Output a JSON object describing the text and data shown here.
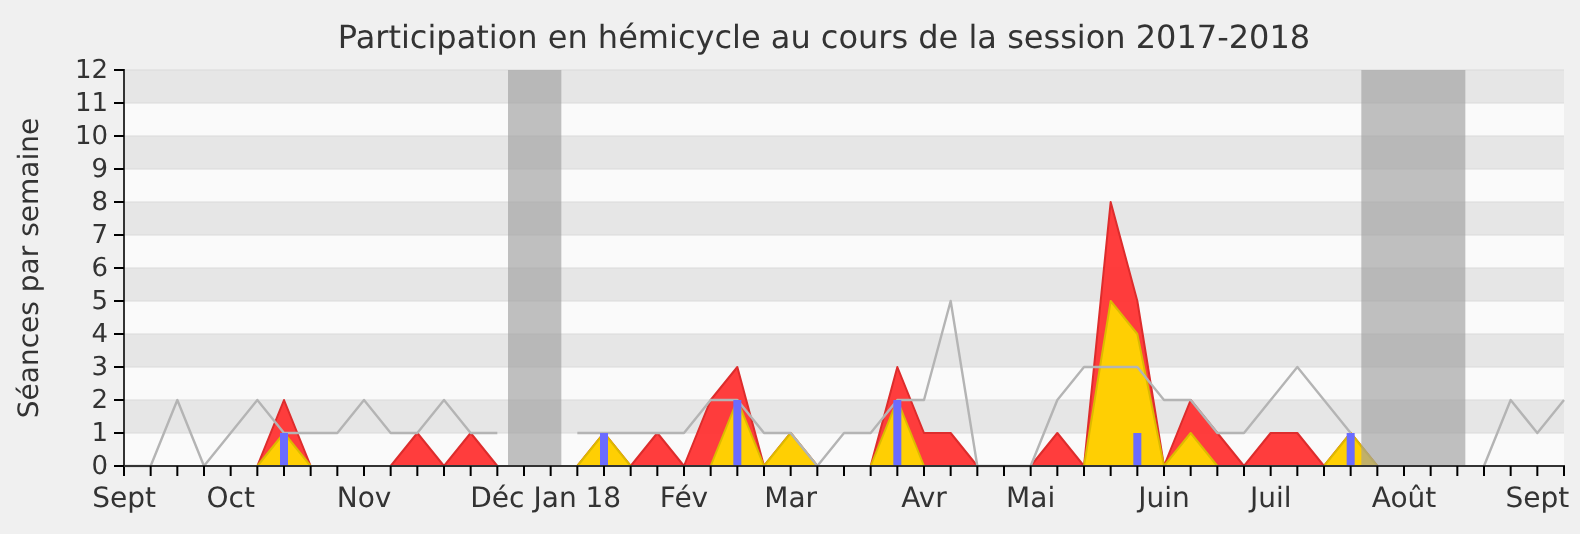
{
  "chart_data": {
    "type": "area",
    "title": "Participation en hémicycle au cours de la session 2017-2018",
    "ylabel": "Séances par semaine",
    "categories": [
      "Sept",
      null,
      null,
      null,
      "Oct",
      null,
      null,
      null,
      null,
      "Nov",
      null,
      null,
      null,
      null,
      "Déc",
      null,
      null,
      "Jan 18",
      null,
      null,
      null,
      "Fév",
      null,
      null,
      null,
      "Mar",
      null,
      null,
      null,
      null,
      "Avr",
      null,
      null,
      null,
      "Mai",
      null,
      null,
      null,
      null,
      "Juin",
      null,
      null,
      null,
      "Juil",
      null,
      null,
      null,
      null,
      "Août",
      null,
      null,
      null,
      null,
      "Sept",
      null
    ],
    "series": [
      {
        "type": "line",
        "color": "#b4b4b4",
        "values": [
          0,
          0,
          2,
          0,
          1,
          2,
          1,
          1,
          1,
          2,
          1,
          1,
          2,
          1,
          1,
          null,
          null,
          1,
          1,
          1,
          1,
          1,
          2,
          2,
          1,
          1,
          0,
          1,
          1,
          2,
          2,
          5,
          0,
          0,
          0,
          2,
          3,
          3,
          3,
          2,
          2,
          1,
          1,
          2,
          3,
          2,
          1,
          null,
          null,
          null,
          null,
          0,
          2,
          1,
          2
        ]
      },
      {
        "color": "#ff3333",
        "values": [
          0,
          0,
          0,
          0,
          0,
          0,
          2,
          0,
          0,
          0,
          0,
          1,
          0,
          1,
          0,
          0,
          0,
          0,
          1,
          0,
          1,
          0,
          2,
          3,
          0,
          1,
          0,
          0,
          0,
          3,
          1,
          1,
          0,
          0,
          0,
          1,
          0,
          8,
          5,
          0,
          2,
          1,
          0,
          1,
          1,
          0,
          1,
          0,
          0,
          0,
          0,
          0,
          0,
          0,
          0
        ]
      },
      {
        "color": "#ffd700",
        "values": [
          0,
          0,
          0,
          0,
          0,
          0,
          1,
          0,
          0,
          0,
          0,
          0,
          0,
          0,
          0,
          0,
          0,
          0,
          1,
          0,
          0,
          0,
          0,
          2,
          0,
          1,
          0,
          0,
          0,
          2,
          0,
          0,
          0,
          0,
          0,
          0,
          0,
          5,
          4,
          0,
          1,
          0,
          0,
          0,
          0,
          0,
          1,
          0,
          0,
          0,
          0,
          0,
          0,
          0,
          0
        ]
      },
      {
        "type": "bar",
        "color": "#6b6bff",
        "values": [
          null,
          null,
          null,
          null,
          null,
          null,
          1,
          null,
          null,
          null,
          null,
          null,
          null,
          null,
          null,
          null,
          null,
          null,
          1,
          null,
          null,
          null,
          null,
          2,
          null,
          null,
          null,
          null,
          null,
          2,
          null,
          null,
          null,
          null,
          null,
          null,
          null,
          null,
          1,
          null,
          null,
          null,
          null,
          null,
          null,
          null,
          1,
          null,
          null,
          null,
          null,
          null,
          null,
          null,
          null
        ]
      }
    ],
    "ylim": [
      0,
      12
    ],
    "yticks": [
      0,
      1,
      2,
      3,
      4,
      5,
      6,
      7,
      8,
      9,
      10,
      11,
      12
    ],
    "grid": "y"
  }
}
